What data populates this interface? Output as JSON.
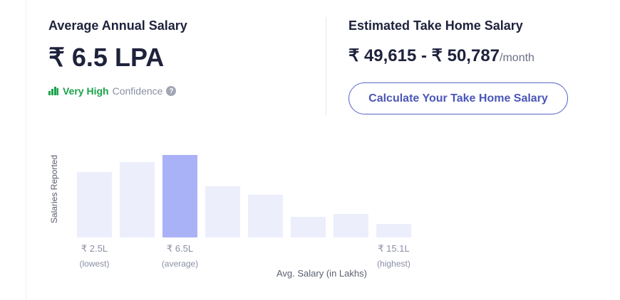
{
  "average": {
    "heading": "Average Annual Salary",
    "value": "₹ 6.5 LPA",
    "confidence_level": "Very High",
    "confidence_word": "Confidence",
    "help_glyph": "?"
  },
  "take_home": {
    "heading": "Estimated Take Home Salary",
    "range": "₹ 49,615 - ₹ 50,787",
    "unit": "/month",
    "button_label": "Calculate Your Take Home Salary"
  },
  "colors": {
    "bar": "#eceefc",
    "bar_highlight": "#a9b2f6",
    "confidence": "#1aa34a",
    "button": "#4b56b8"
  },
  "chart_data": {
    "type": "bar",
    "ylabel": "Salaries Reported",
    "xlabel": "Avg. Salary (in Lakhs)",
    "values": [
      92,
      106,
      116,
      72,
      60,
      29,
      33,
      19
    ],
    "highlight_index": 2,
    "tick_labels": [
      {
        "index": 0,
        "label": "₹ 2.5L",
        "sub": "(lowest)"
      },
      {
        "index": 2,
        "label": "₹ 6.5L",
        "sub": "(average)"
      },
      {
        "index": 7,
        "label": "₹ 15.1L",
        "sub": "(highest)"
      }
    ],
    "grid": false
  }
}
